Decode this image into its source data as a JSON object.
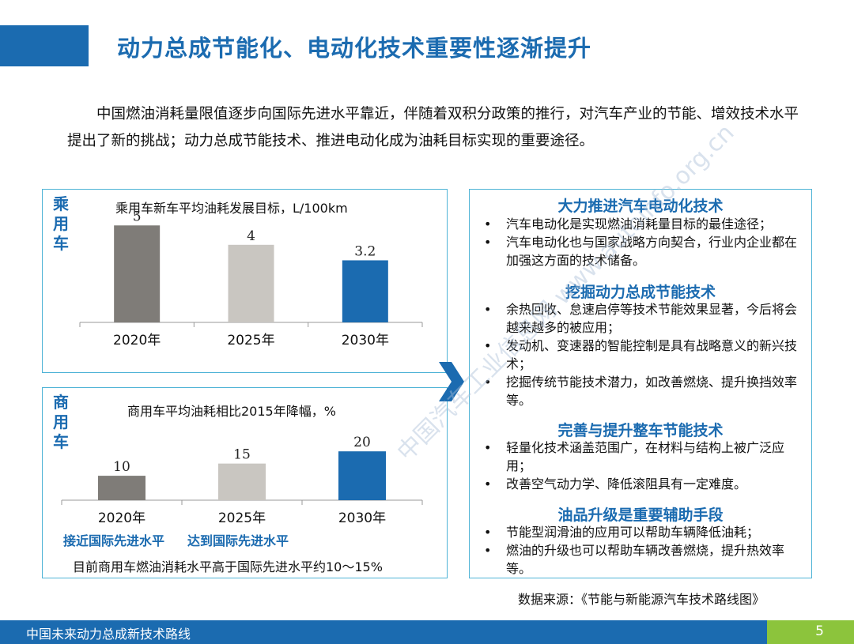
{
  "header": {
    "title": "动力总成节能化、电动化技术重要性逐渐提升"
  },
  "intro": "中国燃油消耗量限值逐步向国际先进水平靠近，伴随着双积分政策的推行，对汽车产业的节能、增效技术水平提出了新的挑战；动力总成节能技术、推进电动化成为油耗目标实现的重要途径。",
  "passenger": {
    "label": "乘用车"
  },
  "commercial": {
    "label": "商用车",
    "note_2025": "接近国际先进水平",
    "note_2030": "达到国际先进水平",
    "footnote": "目前商用车燃油消耗水平高于国际先进水平约10～15%"
  },
  "chart_data": [
    {
      "type": "bar",
      "title": "乘用车新车平均油耗发展目标，L/100km",
      "categories": [
        "2020年",
        "2025年",
        "2030年"
      ],
      "values": [
        5,
        4,
        3.2
      ],
      "value_labels": [
        "5",
        "4",
        "3.2"
      ],
      "colors": [
        "#7f7c78",
        "#c9c6c1",
        "#1b6bb0"
      ],
      "ylim": [
        0,
        5.5
      ]
    },
    {
      "type": "bar",
      "title": "商用车平均油耗相比2015年降幅，%",
      "categories": [
        "2020年",
        "2025年",
        "2030年"
      ],
      "values": [
        10,
        15,
        20
      ],
      "value_labels": [
        "10",
        "15",
        "20"
      ],
      "colors": [
        "#7f7c78",
        "#c9c6c1",
        "#1b6bb0"
      ],
      "ylim": [
        0,
        22
      ]
    }
  ],
  "right_panel": {
    "sections": [
      {
        "title": "大力推进汽车电动化技术",
        "items": [
          "汽车电动化是实现燃油消耗量目标的最佳途径；",
          "汽车电动化也与国家战略方向契合，行业内企业都在加强这方面的技术储备。"
        ]
      },
      {
        "title": "挖掘动力总成节能技术",
        "items": [
          "余热回收、怠速启停等技术节能效果显著，今后将会越来越多的被应用；",
          "发动机、变速器的智能控制是具有战略意义的新兴技术；",
          "挖掘传统节能技术潜力，如改善燃烧、提升换挡效率等。"
        ]
      },
      {
        "title": "完善与提升整车节能技术",
        "items": [
          "轻量化技术涵盖范围广，在材料与结构上被广泛应用；",
          "改善空气动力学、降低滚阻具有一定难度。"
        ]
      },
      {
        "title": "油品升级是重要辅助手段",
        "items": [
          "节能型润滑油的应用可以帮助车辆降低油耗；",
          "燃油的升级也可以帮助车辆改善燃烧，提升热效率等。"
        ]
      }
    ]
  },
  "source": "数据来源：《节能与新能源汽车技术路线图》",
  "footer": {
    "text": "中国未来动力总成新技术路线",
    "page": "5"
  },
  "watermark": "中国汽车工业信息网 www.autoinfo.org.cn"
}
